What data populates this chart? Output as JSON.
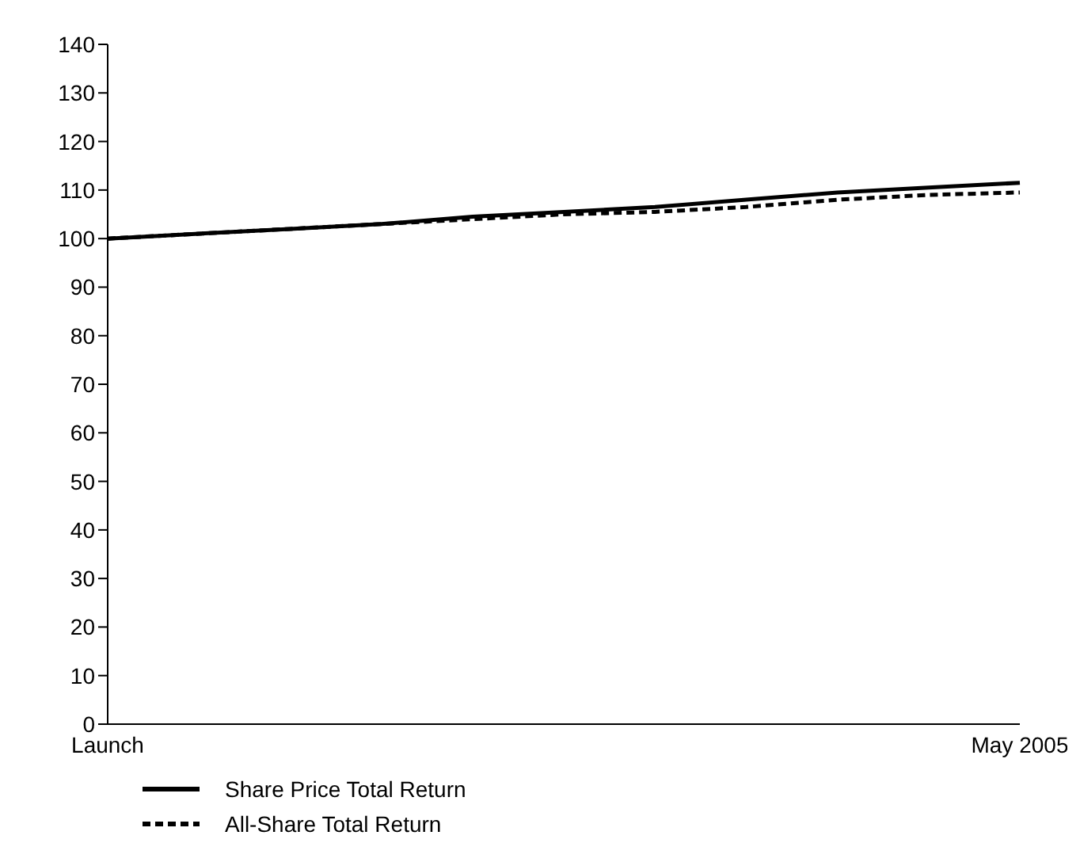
{
  "chart_data": {
    "type": "line",
    "categories": [
      "Launch",
      null,
      null,
      null,
      null,
      null,
      null,
      null,
      null,
      null,
      "May 2005"
    ],
    "series": [
      {
        "name": "Share Price Total Return",
        "color": "#000000",
        "line_style": "solid",
        "values": [
          100,
          101,
          102,
          103,
          104.5,
          105.5,
          106.5,
          108,
          109.5,
          110.5,
          111.5
        ]
      },
      {
        "name": "All-Share Total Return",
        "color": "#000000",
        "line_style": "dashed",
        "values": [
          100,
          101,
          102,
          103,
          104,
          105,
          105.5,
          106.5,
          108,
          109,
          109.5
        ]
      }
    ],
    "ylim": [
      0,
      140
    ],
    "yticks": [
      0,
      10,
      20,
      30,
      40,
      50,
      60,
      70,
      80,
      90,
      100,
      110,
      120,
      130,
      140
    ],
    "grid": false,
    "legend": "bottom",
    "marker": "none"
  }
}
